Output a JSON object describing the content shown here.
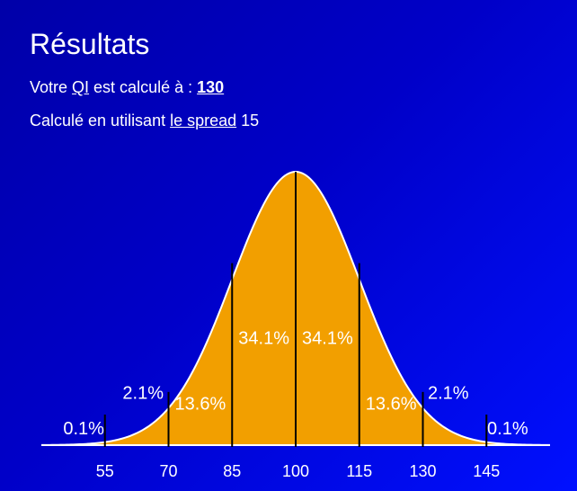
{
  "header": {
    "title": "Résultats",
    "iq_prefix": "Votre ",
    "iq_abbr": "QI",
    "iq_middle": " est calculé à : ",
    "iq_score": "130",
    "spread_prefix": "Calculé en utilisant ",
    "spread_link": "le spread",
    "spread_value": " 15"
  },
  "colors": {
    "background": "#0000c8",
    "curve_fill": "#f29f00",
    "curve_stroke": "#ffffff",
    "divider": "#000000",
    "text": "#ffffff"
  },
  "chart_data": {
    "type": "area",
    "mean": 100,
    "sd": 15,
    "xlim": [
      40,
      160
    ],
    "ticks": [
      55,
      70,
      85,
      100,
      115,
      130,
      145
    ],
    "tick_labels": [
      "55",
      "70",
      "85",
      "100",
      "115",
      "130",
      "145"
    ],
    "region_labels": [
      {
        "text": "0.1%",
        "x": 50,
        "level": 0.01
      },
      {
        "text": "2.1%",
        "x": 64,
        "level": 0.14
      },
      {
        "text": "13.6%",
        "x": 77.5,
        "level": 0.1
      },
      {
        "text": "34.1%",
        "x": 92.5,
        "level": 0.34
      },
      {
        "text": "34.1%",
        "x": 107.5,
        "level": 0.34
      },
      {
        "text": "13.6%",
        "x": 122.5,
        "level": 0.1
      },
      {
        "text": "2.1%",
        "x": 136,
        "level": 0.14
      },
      {
        "text": "0.1%",
        "x": 150,
        "level": 0.01
      }
    ]
  }
}
